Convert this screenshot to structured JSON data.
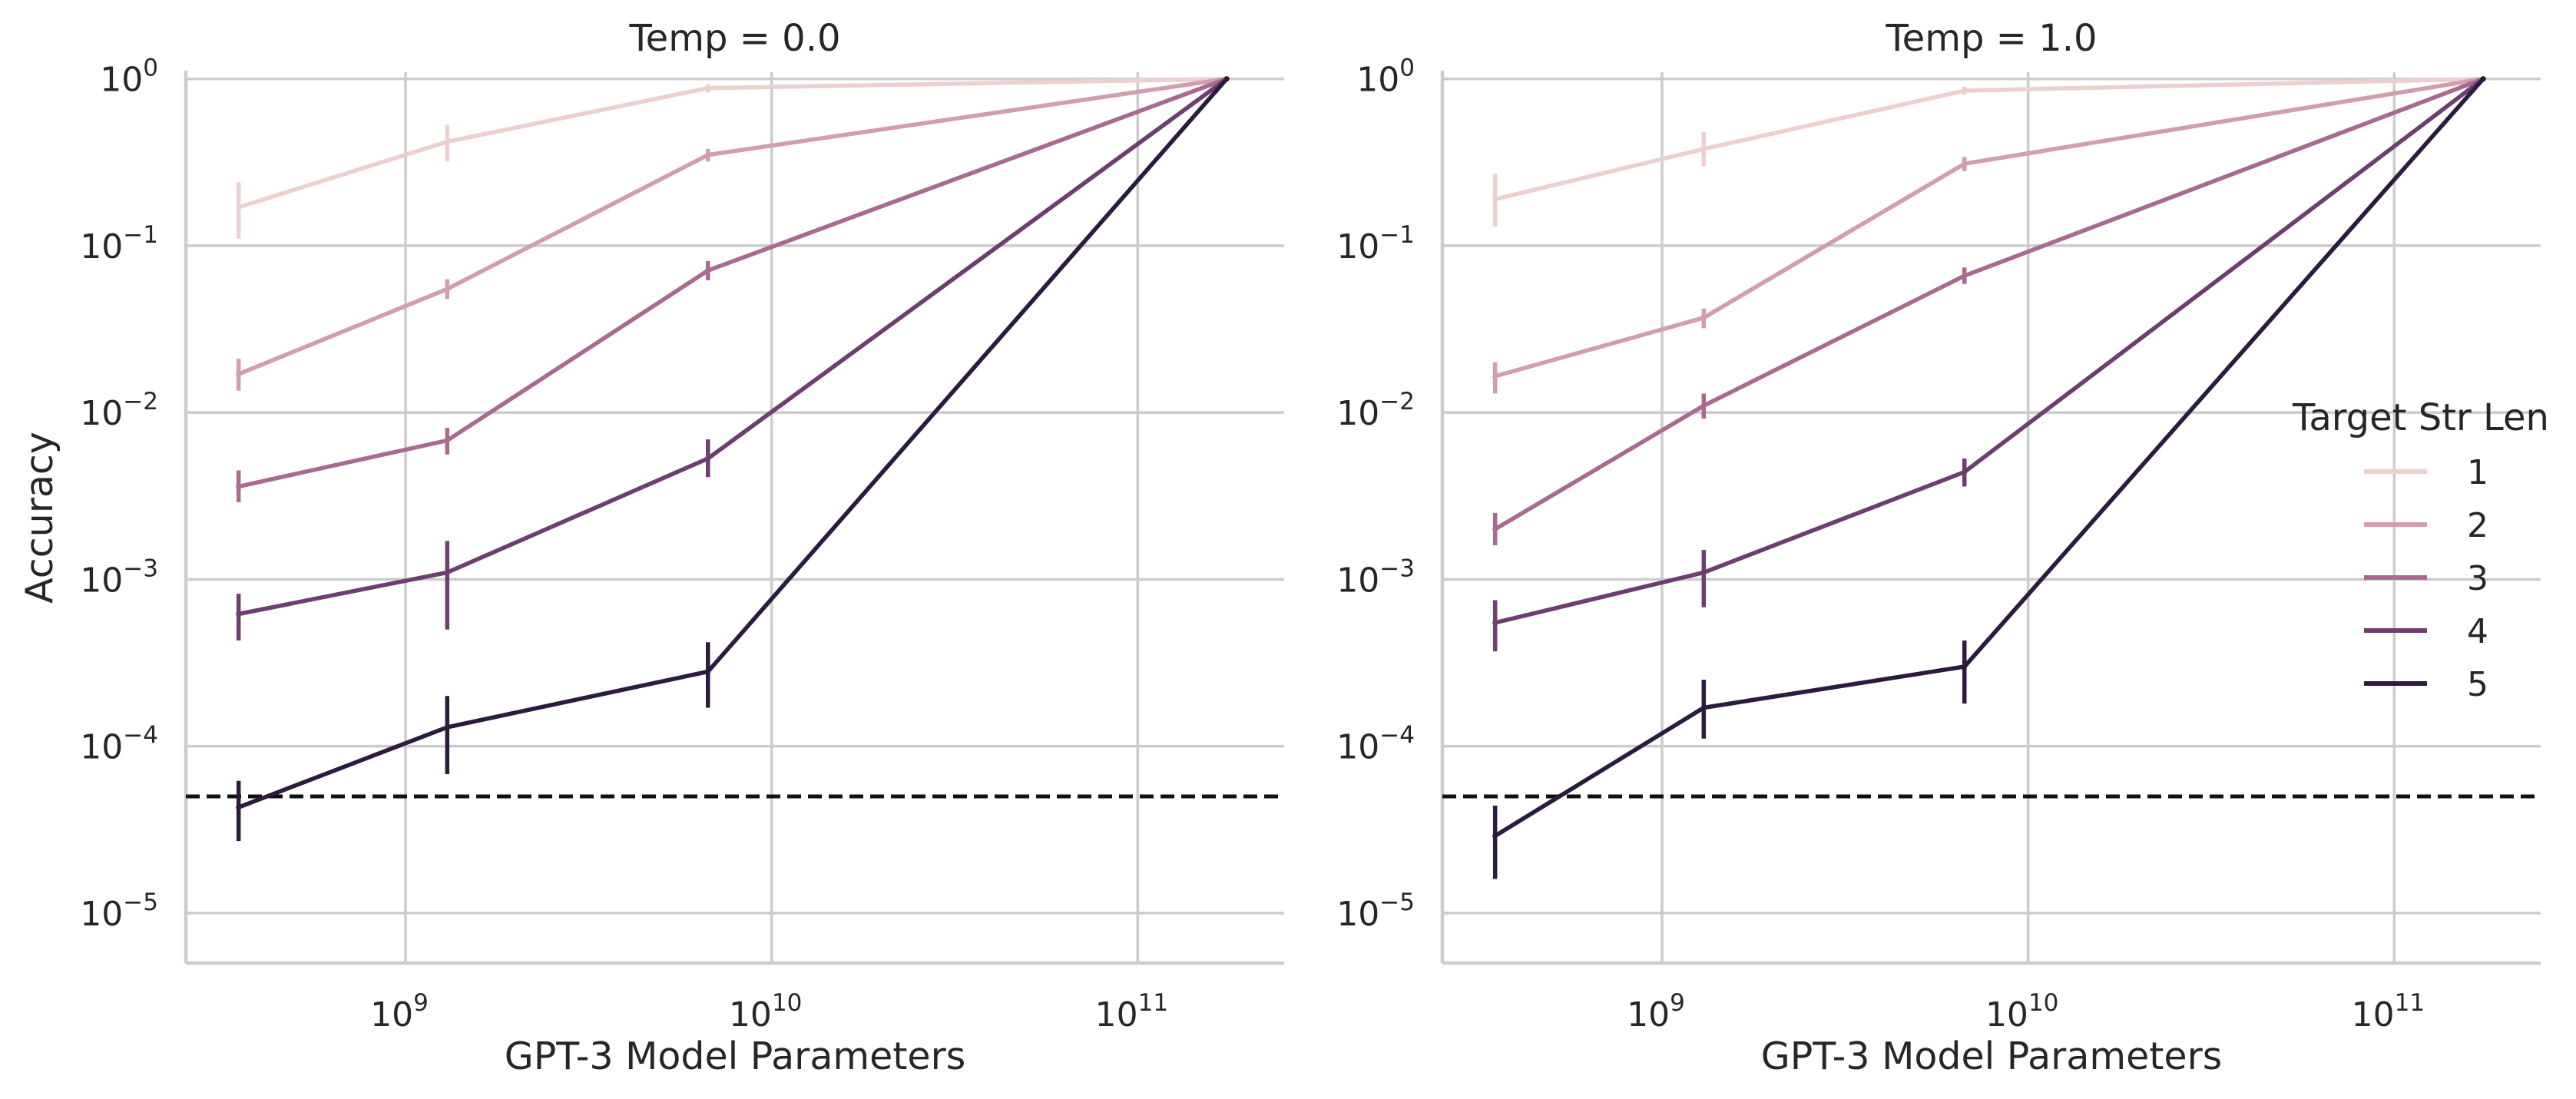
{
  "chart_data": [
    {
      "type": "line",
      "title": "Temp = 0.0",
      "xlabel": "GPT-3 Model Parameters",
      "ylabel": "Accuracy",
      "xscale": "log",
      "yscale": "log",
      "xlim": [
        250000000.0,
        250000000000.0
      ],
      "ylim": [
        5e-06,
        1.1
      ],
      "x_ticks": [
        {
          "base": "10",
          "exp": "9"
        },
        {
          "base": "10",
          "exp": "10"
        },
        {
          "base": "10",
          "exp": "11"
        }
      ],
      "y_ticks": [
        {
          "base": "10",
          "exp": "0"
        },
        {
          "base": "10",
          "exp": "−1"
        },
        {
          "base": "10",
          "exp": "−2"
        },
        {
          "base": "10",
          "exp": "−3"
        },
        {
          "base": "10",
          "exp": "−4"
        },
        {
          "base": "10",
          "exp": "−5"
        }
      ],
      "grid": true,
      "reference_line": {
        "y": 5e-05,
        "style": "dashed",
        "color": "#111111"
      },
      "x": [
        350000000.0,
        1300000000.0,
        6700000000.0,
        175000000000.0
      ],
      "series": [
        {
          "name": "1",
          "color": "#ecd0d0",
          "values": [
            0.17,
            0.42,
            0.88,
            1.0
          ],
          "err_low": [
            0.11,
            0.32,
            0.83,
            1.0
          ],
          "err_high": [
            0.24,
            0.53,
            0.93,
            1.0
          ]
        },
        {
          "name": "2",
          "color": "#d29dac",
          "values": [
            0.017,
            0.055,
            0.35,
            1.0
          ],
          "err_low": [
            0.0135,
            0.048,
            0.32,
            1.0
          ],
          "err_high": [
            0.021,
            0.063,
            0.38,
            1.0
          ]
        },
        {
          "name": "3",
          "color": "#aa6a8f",
          "values": [
            0.0036,
            0.0068,
            0.071,
            1.0
          ],
          "err_low": [
            0.0029,
            0.0056,
            0.062,
            1.0
          ],
          "err_high": [
            0.0045,
            0.0081,
            0.081,
            1.0
          ]
        },
        {
          "name": "4",
          "color": "#6e3e70",
          "values": [
            0.00062,
            0.0011,
            0.0053,
            1.0
          ],
          "err_low": [
            0.00043,
            0.0005,
            0.0041,
            1.0
          ],
          "err_high": [
            0.00082,
            0.0017,
            0.0069,
            1.0
          ]
        },
        {
          "name": "5",
          "color": "#2b1b3c",
          "values": [
            4.3e-05,
            0.00013,
            0.00028,
            1.0
          ],
          "err_low": [
            2.7e-05,
            6.8e-05,
            0.00017,
            1.0
          ],
          "err_high": [
            6.2e-05,
            0.0002,
            0.00042,
            1.0
          ]
        }
      ]
    },
    {
      "type": "line",
      "title": "Temp = 1.0",
      "xlabel": "GPT-3 Model Parameters",
      "ylabel": "",
      "xscale": "log",
      "yscale": "log",
      "xlim": [
        250000000.0,
        250000000000.0
      ],
      "ylim": [
        5e-06,
        1.1
      ],
      "x_ticks": [
        {
          "base": "10",
          "exp": "9"
        },
        {
          "base": "10",
          "exp": "10"
        },
        {
          "base": "10",
          "exp": "11"
        }
      ],
      "y_ticks": [
        {
          "base": "10",
          "exp": "0"
        },
        {
          "base": "10",
          "exp": "−1"
        },
        {
          "base": "10",
          "exp": "−2"
        },
        {
          "base": "10",
          "exp": "−3"
        },
        {
          "base": "10",
          "exp": "−4"
        },
        {
          "base": "10",
          "exp": "−5"
        }
      ],
      "grid": true,
      "reference_line": {
        "y": 5e-05,
        "style": "dashed",
        "color": "#111111"
      },
      "x": [
        350000000.0,
        1300000000.0,
        6700000000.0,
        175000000000.0
      ],
      "series": [
        {
          "name": "1",
          "color": "#ecd0d0",
          "values": [
            0.19,
            0.38,
            0.85,
            1.0
          ],
          "err_low": [
            0.13,
            0.3,
            0.8,
            1.0
          ],
          "err_high": [
            0.27,
            0.48,
            0.9,
            1.0
          ]
        },
        {
          "name": "2",
          "color": "#d29dac",
          "values": [
            0.0165,
            0.037,
            0.31,
            1.0
          ],
          "err_low": [
            0.013,
            0.032,
            0.28,
            1.0
          ],
          "err_high": [
            0.02,
            0.042,
            0.34,
            1.0
          ]
        },
        {
          "name": "3",
          "color": "#aa6a8f",
          "values": [
            0.002,
            0.011,
            0.066,
            1.0
          ],
          "err_low": [
            0.0016,
            0.0092,
            0.059,
            1.0
          ],
          "err_high": [
            0.0025,
            0.013,
            0.074,
            1.0
          ]
        },
        {
          "name": "4",
          "color": "#6e3e70",
          "values": [
            0.00055,
            0.0011,
            0.0044,
            1.0
          ],
          "err_low": [
            0.00037,
            0.00068,
            0.0036,
            1.0
          ],
          "err_high": [
            0.00075,
            0.0015,
            0.0053,
            1.0
          ]
        },
        {
          "name": "5",
          "color": "#2b1b3c",
          "values": [
            2.9e-05,
            0.00017,
            0.0003,
            1.0
          ],
          "err_low": [
            1.6e-05,
            0.000111,
            0.00018,
            1.0
          ],
          "err_high": [
            4.4e-05,
            0.00025,
            0.00043,
            1.0
          ]
        }
      ]
    }
  ],
  "legend": {
    "title": "Target Str Len",
    "placement": "right",
    "entries": [
      {
        "label": "1",
        "color": "#ecd0d0"
      },
      {
        "label": "2",
        "color": "#d29dac"
      },
      {
        "label": "3",
        "color": "#aa6a8f"
      },
      {
        "label": "4",
        "color": "#6e3e70"
      },
      {
        "label": "5",
        "color": "#2b1b3c"
      }
    ]
  }
}
